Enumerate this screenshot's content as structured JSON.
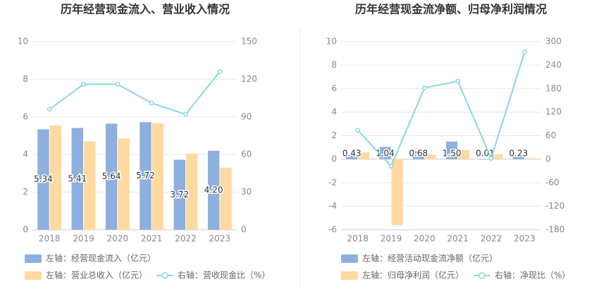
{
  "chart_data": [
    {
      "type": "bar",
      "title": "历年经营现金流入、营业收入情况",
      "categories": [
        "2018",
        "2019",
        "2020",
        "2021",
        "2022",
        "2023"
      ],
      "left_axis": {
        "min": 0,
        "max": 10,
        "ticks": [
          "0",
          "2",
          "4",
          "6",
          "8",
          "10"
        ]
      },
      "right_axis": {
        "min": 0,
        "max": 150,
        "ticks": [
          "0",
          "30",
          "60",
          "90",
          "120",
          "150"
        ]
      },
      "series": [
        {
          "name": "左轴：经营现金流入（亿元）",
          "kind": "bar",
          "axis": "left",
          "color": "#8eb0df",
          "values": [
            5.34,
            5.41,
            5.64,
            5.72,
            3.72,
            4.2
          ],
          "labels": [
            "5.34",
            "5.41",
            "5.64",
            "5.72",
            "3.72",
            "4.20"
          ]
        },
        {
          "name": "左轴：营业总收入（亿元）",
          "kind": "bar",
          "axis": "left",
          "color": "#fed9a0",
          "values": [
            5.55,
            4.7,
            4.85,
            5.65,
            4.05,
            3.3
          ]
        },
        {
          "name": "右轴：营收现金比（%）",
          "kind": "line",
          "axis": "right",
          "color": "#8ad8de",
          "values": [
            96,
            116,
            116,
            101,
            92,
            126
          ]
        }
      ],
      "legend_placement": "bottom",
      "grid": true
    },
    {
      "type": "bar",
      "title": "历年经营现金流净额、归母净利润情况",
      "categories": [
        "2018",
        "2019",
        "2020",
        "2021",
        "2022",
        "2023"
      ],
      "left_axis": {
        "min": -6,
        "max": 10,
        "ticks": [
          "-6",
          "-4",
          "-2",
          "0",
          "2",
          "4",
          "6",
          "8",
          "10"
        ]
      },
      "right_axis": {
        "min": -180,
        "max": 300,
        "ticks": [
          "-180",
          "-120",
          "-60",
          "0",
          "60",
          "120",
          "180",
          "240",
          "300"
        ]
      },
      "series": [
        {
          "name": "左轴：经营活动现金流净额（亿元）",
          "kind": "bar",
          "axis": "left",
          "color": "#8eb0df",
          "values": [
            0.43,
            1.04,
            0.68,
            1.5,
            0.01,
            0.23
          ],
          "labels": [
            "0.43",
            "1.04",
            "0.68",
            "1.50",
            "0.01",
            "0.23"
          ]
        },
        {
          "name": "左轴：归母净利润（亿元）",
          "kind": "bar",
          "axis": "left",
          "color": "#fed9a0",
          "values": [
            0.58,
            -5.6,
            0.38,
            0.78,
            0.42,
            0.08
          ]
        },
        {
          "name": "右轴：净现比（%）",
          "kind": "line",
          "axis": "right",
          "color": "#8ad8de",
          "values": [
            74,
            -18,
            182,
            199,
            2,
            273
          ]
        }
      ],
      "legend_placement": "bottom",
      "grid": true
    }
  ]
}
